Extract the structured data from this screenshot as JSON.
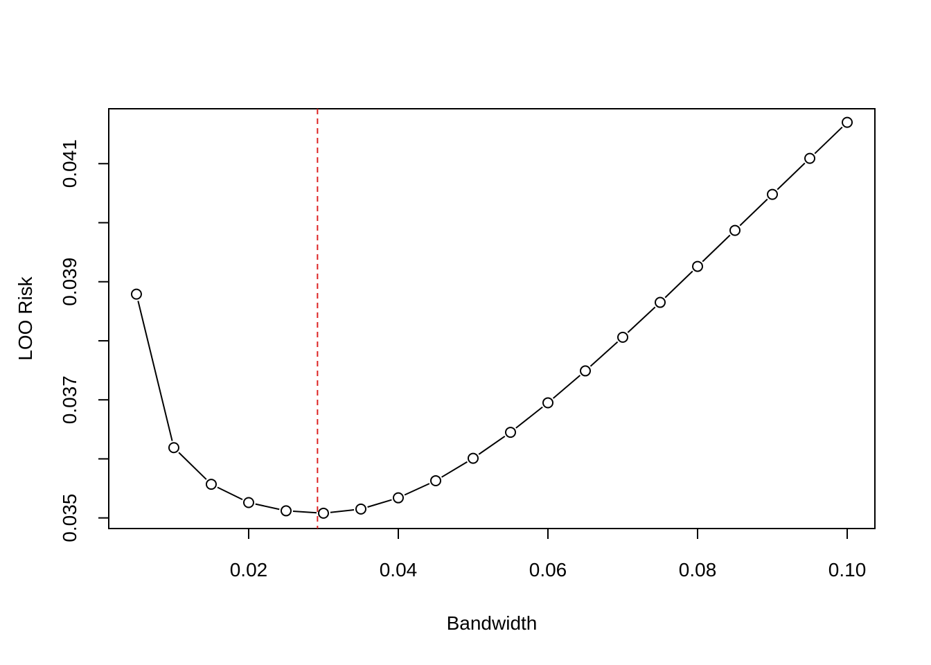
{
  "chart_data": {
    "type": "line",
    "title": "",
    "xlabel": "Bandwidth",
    "ylabel": "LOO Risk",
    "xlim": [
      0.0013,
      0.1037
    ],
    "ylim": [
      0.03482,
      0.04193
    ],
    "x_ticks": [
      {
        "value": 0.02,
        "label": "0.02"
      },
      {
        "value": 0.04,
        "label": "0.04"
      },
      {
        "value": 0.06,
        "label": "0.06"
      },
      {
        "value": 0.08,
        "label": "0.08"
      },
      {
        "value": 0.1,
        "label": "0.10"
      }
    ],
    "y_ticks": [
      {
        "value": 0.035,
        "label": "0.035"
      },
      {
        "value": 0.036,
        "label": ""
      },
      {
        "value": 0.037,
        "label": "0.037"
      },
      {
        "value": 0.038,
        "label": ""
      },
      {
        "value": 0.039,
        "label": "0.039"
      },
      {
        "value": 0.04,
        "label": ""
      },
      {
        "value": 0.041,
        "label": "0.041"
      }
    ],
    "grid": false,
    "series": [
      {
        "style": "points-and-lines",
        "color": "#000000",
        "x": [
          0.005,
          0.01,
          0.015,
          0.02,
          0.025,
          0.03,
          0.035,
          0.04,
          0.045,
          0.05,
          0.055,
          0.06,
          0.065,
          0.07,
          0.075,
          0.08,
          0.085,
          0.09,
          0.095,
          0.1
        ],
        "y": [
          0.03879,
          0.03619,
          0.03557,
          0.03526,
          0.03512,
          0.03508,
          0.03515,
          0.03534,
          0.03563,
          0.03601,
          0.03645,
          0.03695,
          0.03749,
          0.03806,
          0.03865,
          0.03926,
          0.03987,
          0.04048,
          0.04109,
          0.0417
        ]
      }
    ],
    "vline": {
      "x": 0.0292,
      "color": "#dd2222",
      "style": "dashed"
    }
  }
}
